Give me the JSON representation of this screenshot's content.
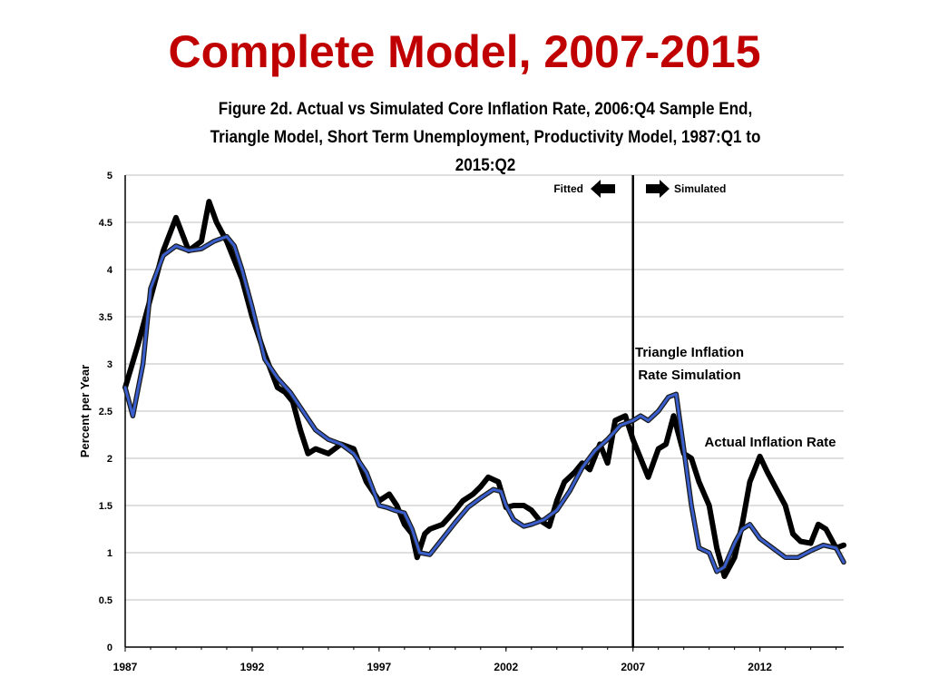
{
  "slide": {
    "title": "Complete Model, 2007-2015"
  },
  "chart_data": {
    "type": "line",
    "title_lines": [
      "Figure 2d. Actual vs Simulated Core Inflation Rate, 2006:Q4 Sample End,",
      "Triangle Model, Short Term Unemployment, Productivity Model, 1987:Q1 to",
      "2015:Q2"
    ],
    "xlabel": "",
    "ylabel": "Percent per Year",
    "xlim": [
      1987,
      2015.3
    ],
    "ylim": [
      0,
      5
    ],
    "x_ticks": [
      1987,
      1992,
      1997,
      2002,
      2007,
      2012
    ],
    "y_ticks": [
      0,
      0.5,
      1,
      1.5,
      2,
      2.5,
      3,
      3.5,
      4,
      4.5,
      5
    ],
    "y_tick_labels": [
      "0",
      "0.5",
      "1",
      "1.5",
      "2",
      "2.5",
      "3",
      "3.5",
      "4",
      "4.5",
      "5"
    ],
    "grid": true,
    "divider": {
      "x": 2007,
      "left_label": "Fitted",
      "right_label": "Simulated"
    },
    "annotations": {
      "simulated_line_1": "Triangle Inflation",
      "simulated_line_2": "Rate Simulation",
      "actual": "Actual Inflation Rate"
    },
    "colors": {
      "actual": "#000000",
      "simulated": "#3a5fcd",
      "grid": "#bfbfbf",
      "title": "#c00000"
    },
    "series": [
      {
        "name": "Actual Inflation Rate",
        "x": [
          1987.0,
          1987.5,
          1988.0,
          1988.5,
          1989.0,
          1989.5,
          1990.0,
          1990.3,
          1990.6,
          1991.0,
          1991.3,
          1991.6,
          1992.0,
          1992.5,
          1993.0,
          1993.3,
          1993.6,
          1993.9,
          1994.2,
          1994.5,
          1995.0,
          1995.5,
          1996.0,
          1996.5,
          1997.0,
          1997.4,
          1997.7,
          1998.0,
          1998.3,
          1998.5,
          1998.8,
          1999.0,
          1999.5,
          2000.0,
          2000.3,
          2000.7,
          2001.0,
          2001.3,
          2001.7,
          2002.0,
          2002.3,
          2002.7,
          2003.0,
          2003.3,
          2003.7,
          2004.0,
          2004.3,
          2004.7,
          2005.0,
          2005.3,
          2005.7,
          2006.0,
          2006.3,
          2006.7,
          2007.0,
          2007.3,
          2007.6,
          2008.0,
          2008.3,
          2008.6,
          2009.0,
          2009.3,
          2009.6,
          2010.0,
          2010.3,
          2010.6,
          2011.0,
          2011.3,
          2011.6,
          2012.0,
          2012.3,
          2012.7,
          2013.0,
          2013.3,
          2013.6,
          2014.0,
          2014.3,
          2014.6,
          2015.0,
          2015.3
        ],
        "values": [
          2.75,
          3.2,
          3.7,
          4.2,
          4.55,
          4.2,
          4.3,
          4.72,
          4.5,
          4.3,
          4.1,
          3.9,
          3.5,
          3.1,
          2.75,
          2.7,
          2.6,
          2.3,
          2.05,
          2.1,
          2.05,
          2.15,
          2.1,
          1.75,
          1.55,
          1.62,
          1.5,
          1.3,
          1.2,
          0.95,
          1.2,
          1.25,
          1.3,
          1.45,
          1.55,
          1.62,
          1.7,
          1.8,
          1.75,
          1.48,
          1.5,
          1.5,
          1.45,
          1.35,
          1.28,
          1.55,
          1.75,
          1.85,
          1.95,
          1.88,
          2.15,
          1.95,
          2.4,
          2.45,
          2.2,
          2.0,
          1.8,
          2.1,
          2.15,
          2.45,
          2.05,
          2.0,
          1.75,
          1.5,
          1.05,
          0.75,
          0.95,
          1.3,
          1.75,
          2.02,
          1.85,
          1.65,
          1.5,
          1.2,
          1.12,
          1.1,
          1.3,
          1.25,
          1.05,
          1.08
        ]
      },
      {
        "name": "Triangle Inflation Rate Simulation",
        "x": [
          1987.0,
          1987.3,
          1987.7,
          1988.0,
          1988.5,
          1989.0,
          1989.5,
          1990.0,
          1990.5,
          1991.0,
          1991.3,
          1991.6,
          1992.0,
          1992.5,
          1993.0,
          1993.5,
          1994.0,
          1994.5,
          1995.0,
          1995.5,
          1996.0,
          1996.5,
          1997.0,
          1997.3,
          1997.6,
          1998.0,
          1998.3,
          1998.6,
          1999.0,
          1999.5,
          2000.0,
          2000.5,
          2001.0,
          2001.5,
          2001.8,
          2002.0,
          2002.3,
          2002.7,
          2003.0,
          2003.5,
          2004.0,
          2004.5,
          2005.0,
          2005.5,
          2006.0,
          2006.5,
          2007.0,
          2007.3,
          2007.6,
          2008.0,
          2008.4,
          2008.7,
          2009.0,
          2009.3,
          2009.6,
          2010.0,
          2010.3,
          2010.6,
          2011.0,
          2011.3,
          2011.6,
          2012.0,
          2012.5,
          2013.0,
          2013.5,
          2014.0,
          2014.5,
          2015.0,
          2015.3
        ],
        "values": [
          2.75,
          2.45,
          3.0,
          3.8,
          4.15,
          4.25,
          4.2,
          4.22,
          4.3,
          4.35,
          4.25,
          4.0,
          3.6,
          3.05,
          2.85,
          2.7,
          2.5,
          2.3,
          2.2,
          2.15,
          2.05,
          1.85,
          1.5,
          1.48,
          1.45,
          1.42,
          1.25,
          1.0,
          0.98,
          1.15,
          1.32,
          1.48,
          1.58,
          1.67,
          1.65,
          1.5,
          1.35,
          1.28,
          1.3,
          1.35,
          1.45,
          1.65,
          1.9,
          2.08,
          2.2,
          2.35,
          2.4,
          2.45,
          2.4,
          2.5,
          2.65,
          2.68,
          2.1,
          1.5,
          1.05,
          1.0,
          0.8,
          0.85,
          1.1,
          1.25,
          1.3,
          1.15,
          1.05,
          0.95,
          0.95,
          1.02,
          1.08,
          1.05,
          0.9
        ]
      }
    ]
  }
}
